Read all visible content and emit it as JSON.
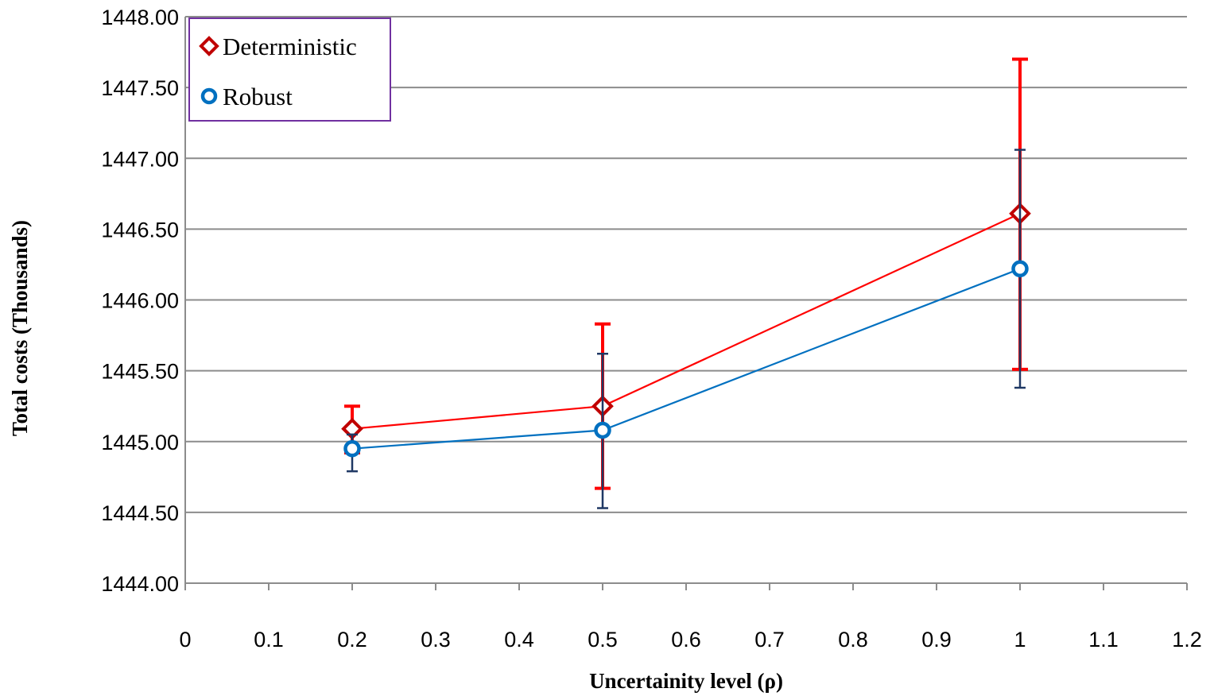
{
  "chart_data": {
    "type": "scatter",
    "title": "",
    "xlabel": "Uncertainity level (ρ)",
    "ylabel": "Total costs (Thousands)",
    "xlim": [
      0,
      1.2
    ],
    "ylim": [
      1444.0,
      1448.0
    ],
    "x_ticks": [
      "0",
      "0.1",
      "0.2",
      "0.3",
      "0.4",
      "0.5",
      "0.6",
      "0.7",
      "0.8",
      "0.9",
      "1",
      "1.1",
      "1.2"
    ],
    "y_ticks": [
      "1444.00",
      "1444.50",
      "1445.00",
      "1445.50",
      "1446.00",
      "1446.50",
      "1447.00",
      "1447.50",
      "1448.00"
    ],
    "grid": "horizontal",
    "legend_position": "top-left",
    "series": [
      {
        "name": "Deterministic",
        "marker": "diamond",
        "line_color": "#ff0000",
        "marker_color": "#c00000",
        "error_color": "#ff0000",
        "x": [
          0.2,
          0.5,
          1.0
        ],
        "y": [
          1445.09,
          1445.25,
          1446.61
        ],
        "y_err_low": [
          1444.92,
          1444.67,
          1445.51
        ],
        "y_err_high": [
          1445.25,
          1445.83,
          1447.7
        ]
      },
      {
        "name": "Robust",
        "marker": "circle",
        "line_color": "#0070c0",
        "marker_color": "#0070c0",
        "error_color": "#1f3864",
        "x": [
          0.2,
          0.5,
          1.0
        ],
        "y": [
          1444.95,
          1445.08,
          1446.22
        ],
        "y_err_low": [
          1444.79,
          1444.53,
          1445.38
        ],
        "y_err_high": [
          1445.05,
          1445.62,
          1447.06
        ]
      }
    ]
  }
}
